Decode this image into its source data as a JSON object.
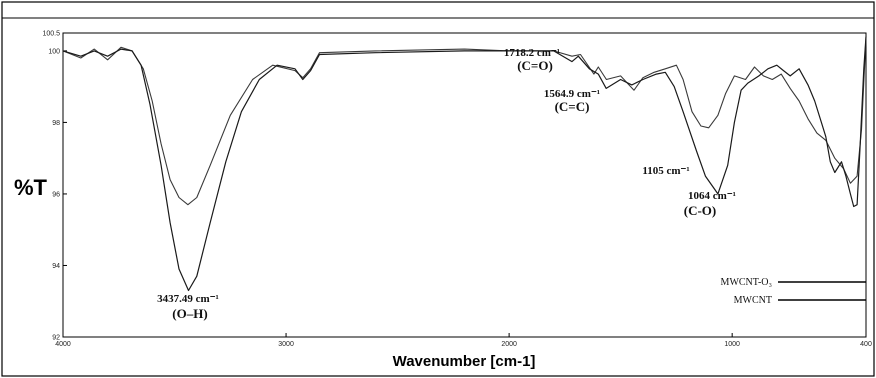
{
  "chart_data": {
    "type": "line",
    "ylabel": "%T",
    "xlabel": "Wavenumber [cm-1]",
    "xlim": [
      4000,
      400
    ],
    "ylim": [
      92,
      100.5
    ],
    "xticks": [
      4000,
      3000,
      2000,
      1000,
      400
    ],
    "xtick_labels": [
      "4000",
      "3000",
      "2000",
      "1000",
      "400"
    ],
    "yticks": [
      100.5,
      100,
      98,
      96,
      94,
      92
    ],
    "ytick_labels": [
      "100.5",
      "100",
      "98",
      "96",
      "94",
      "92"
    ],
    "grid": false,
    "legend_position": "bottom-right",
    "series": [
      {
        "name": "MWCNT-O₃",
        "style": "dashed",
        "points": [
          [
            4000,
            100.0
          ],
          [
            3920,
            99.8
          ],
          [
            3860,
            100.05
          ],
          [
            3800,
            99.75
          ],
          [
            3740,
            100.1
          ],
          [
            3690,
            100.0
          ],
          [
            3640,
            99.5
          ],
          [
            3600,
            98.6
          ],
          [
            3560,
            97.4
          ],
          [
            3520,
            96.4
          ],
          [
            3480,
            95.9
          ],
          [
            3440,
            95.7
          ],
          [
            3400,
            95.9
          ],
          [
            3340,
            96.8
          ],
          [
            3250,
            98.2
          ],
          [
            3150,
            99.2
          ],
          [
            3060,
            99.6
          ],
          [
            2960,
            99.45
          ],
          [
            2925,
            99.25
          ],
          [
            2890,
            99.5
          ],
          [
            2850,
            99.95
          ],
          [
            2600,
            100.0
          ],
          [
            2200,
            100.05
          ],
          [
            2000,
            100.0
          ],
          [
            1800,
            100.0
          ],
          [
            1718,
            99.85
          ],
          [
            1680,
            99.9
          ],
          [
            1620,
            99.35
          ],
          [
            1600,
            99.55
          ],
          [
            1564,
            99.2
          ],
          [
            1500,
            99.3
          ],
          [
            1440,
            98.9
          ],
          [
            1400,
            99.25
          ],
          [
            1350,
            99.4
          ],
          [
            1300,
            99.5
          ],
          [
            1250,
            99.6
          ],
          [
            1220,
            99.2
          ],
          [
            1180,
            98.3
          ],
          [
            1140,
            97.9
          ],
          [
            1105,
            97.85
          ],
          [
            1064,
            98.2
          ],
          [
            1030,
            98.8
          ],
          [
            990,
            99.3
          ],
          [
            940,
            99.2
          ],
          [
            900,
            99.55
          ],
          [
            860,
            99.3
          ],
          [
            820,
            99.2
          ],
          [
            780,
            99.35
          ],
          [
            740,
            98.95
          ],
          [
            700,
            98.6
          ],
          [
            660,
            98.1
          ],
          [
            620,
            97.7
          ],
          [
            580,
            97.5
          ],
          [
            540,
            97.0
          ],
          [
            500,
            96.7
          ],
          [
            470,
            96.3
          ],
          [
            440,
            96.5
          ],
          [
            420,
            97.8
          ],
          [
            400,
            100.4
          ]
        ]
      },
      {
        "name": "MWCNT",
        "style": "solid",
        "points": [
          [
            4000,
            100.0
          ],
          [
            3920,
            99.85
          ],
          [
            3860,
            100.0
          ],
          [
            3800,
            99.85
          ],
          [
            3740,
            100.05
          ],
          [
            3690,
            100.0
          ],
          [
            3650,
            99.6
          ],
          [
            3610,
            98.5
          ],
          [
            3560,
            96.8
          ],
          [
            3520,
            95.2
          ],
          [
            3480,
            93.9
          ],
          [
            3437.49,
            93.3
          ],
          [
            3400,
            93.7
          ],
          [
            3340,
            95.2
          ],
          [
            3270,
            96.9
          ],
          [
            3200,
            98.3
          ],
          [
            3120,
            99.2
          ],
          [
            3040,
            99.6
          ],
          [
            2960,
            99.5
          ],
          [
            2925,
            99.2
          ],
          [
            2890,
            99.45
          ],
          [
            2850,
            99.9
          ],
          [
            2600,
            99.95
          ],
          [
            2200,
            100.0
          ],
          [
            2000,
            100.0
          ],
          [
            1800,
            100.0
          ],
          [
            1718.2,
            99.7
          ],
          [
            1690,
            99.85
          ],
          [
            1640,
            99.5
          ],
          [
            1600,
            99.35
          ],
          [
            1564.9,
            98.95
          ],
          [
            1500,
            99.2
          ],
          [
            1450,
            99.05
          ],
          [
            1400,
            99.2
          ],
          [
            1340,
            99.35
          ],
          [
            1300,
            99.4
          ],
          [
            1260,
            99.0
          ],
          [
            1220,
            98.3
          ],
          [
            1160,
            97.2
          ],
          [
            1120,
            96.5
          ],
          [
            1064,
            96.0
          ],
          [
            1020,
            96.8
          ],
          [
            990,
            98.0
          ],
          [
            960,
            98.9
          ],
          [
            930,
            99.1
          ],
          [
            880,
            99.3
          ],
          [
            840,
            99.5
          ],
          [
            800,
            99.6
          ],
          [
            770,
            99.45
          ],
          [
            740,
            99.3
          ],
          [
            700,
            99.5
          ],
          [
            660,
            99.05
          ],
          [
            630,
            98.6
          ],
          [
            600,
            98.0
          ],
          [
            580,
            97.6
          ],
          [
            560,
            96.9
          ],
          [
            540,
            96.6
          ],
          [
            510,
            96.9
          ],
          [
            490,
            96.5
          ],
          [
            470,
            96.0
          ],
          [
            455,
            95.65
          ],
          [
            440,
            95.7
          ],
          [
            425,
            97.5
          ],
          [
            410,
            99.5
          ],
          [
            400,
            100.4
          ]
        ]
      }
    ],
    "annotations": [
      {
        "label": "3437.49 cm⁻¹",
        "group": "(O–H)",
        "x": 3437.49,
        "y": 93.3
      },
      {
        "label": "1718.2 cm⁻¹",
        "group": "(C=O)",
        "x": 1718.2,
        "y": 99.7
      },
      {
        "label": "1564.9 cm⁻¹",
        "group": "(C=C)",
        "x": 1564.9,
        "y": 98.95
      },
      {
        "label": "1105 cm⁻¹",
        "group": "",
        "x": 1105,
        "y": 97.85
      },
      {
        "label": "1064 cm⁻¹",
        "group": "(C-O)",
        "x": 1064,
        "y": 96.0
      }
    ]
  }
}
